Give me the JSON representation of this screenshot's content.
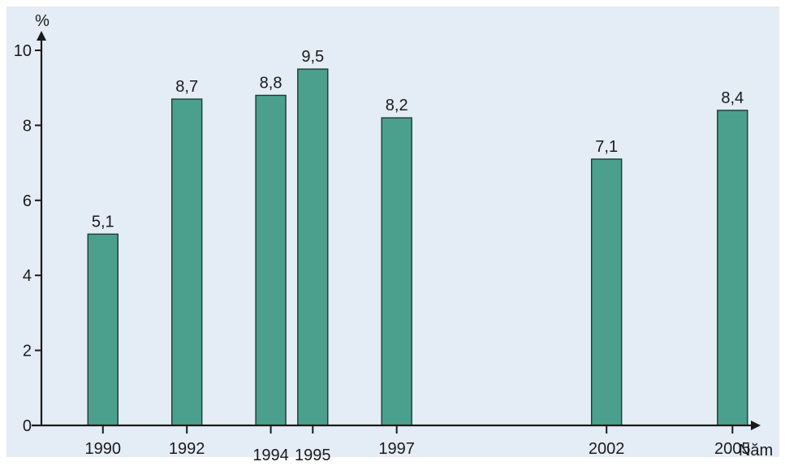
{
  "chart_data": {
    "type": "bar",
    "categories": [
      "1990",
      "1992",
      "1994",
      "1995",
      "1997",
      "2002",
      "2005"
    ],
    "values": [
      5.1,
      8.7,
      8.8,
      9.5,
      8.2,
      7.1,
      8.4
    ],
    "value_labels": [
      "5,1",
      "8,7",
      "8,8",
      "9,5",
      "8,2",
      "7,1",
      "8,4"
    ],
    "title": "",
    "xlabel": "Năm",
    "ylabel": "%",
    "ylim": [
      0,
      10
    ],
    "yticks": [
      0,
      2,
      4,
      6,
      8,
      10
    ],
    "ytick_labels": [
      "0",
      "2",
      "4",
      "6",
      "8",
      "10"
    ],
    "grid": false,
    "legend": "none",
    "x_is_time_scaled": true
  },
  "colors": {
    "background": "#e4ecf6",
    "bar_fill": "#4aa08c",
    "bar_stroke": "#1e3a34",
    "axis": "#1a1a1a",
    "text": "#1a1a1a"
  }
}
